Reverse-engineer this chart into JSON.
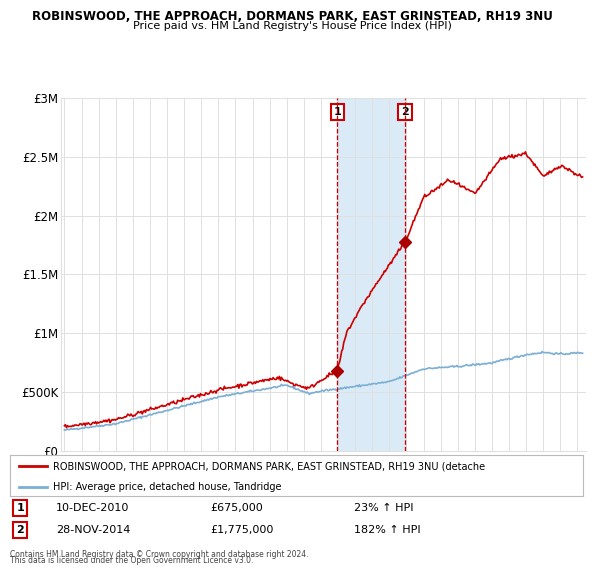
{
  "title1": "ROBINSWOOD, THE APPROACH, DORMANS PARK, EAST GRINSTEAD, RH19 3NU",
  "title2": "Price paid vs. HM Land Registry's House Price Index (HPI)",
  "ylabel_ticks": [
    "£0",
    "£500K",
    "£1M",
    "£1.5M",
    "£2M",
    "£2.5M",
    "£3M"
  ],
  "ylabel_values": [
    0,
    500000,
    1000000,
    1500000,
    2000000,
    2500000,
    3000000
  ],
  "ylim": [
    0,
    3000000
  ],
  "xlim_start": 1994.8,
  "xlim_end": 2025.5,
  "sale1_year": 2010.95,
  "sale1_price": 675000,
  "sale2_year": 2014.92,
  "sale2_price": 1775000,
  "sale1_date": "10-DEC-2010",
  "sale1_price_str": "£675,000",
  "sale1_pct": "23% ↑ HPI",
  "sale2_date": "28-NOV-2014",
  "sale2_price_str": "£1,775,000",
  "sale2_pct": "182% ↑ HPI",
  "legend_line1": "ROBINSWOOD, THE APPROACH, DORMANS PARK, EAST GRINSTEAD, RH19 3NU (detache",
  "legend_line2": "HPI: Average price, detached house, Tandridge",
  "footer1": "Contains HM Land Registry data © Crown copyright and database right 2024.",
  "footer2": "This data is licensed under the Open Government Licence v3.0.",
  "line_color_red": "#cc0000",
  "line_color_blue": "#7bafd4",
  "shade_color": "#daeaf7",
  "marker_color_red": "#aa0000",
  "annotation_box_color": "#cc0000",
  "background_color": "#ffffff",
  "grid_color": "#e0e0e0"
}
